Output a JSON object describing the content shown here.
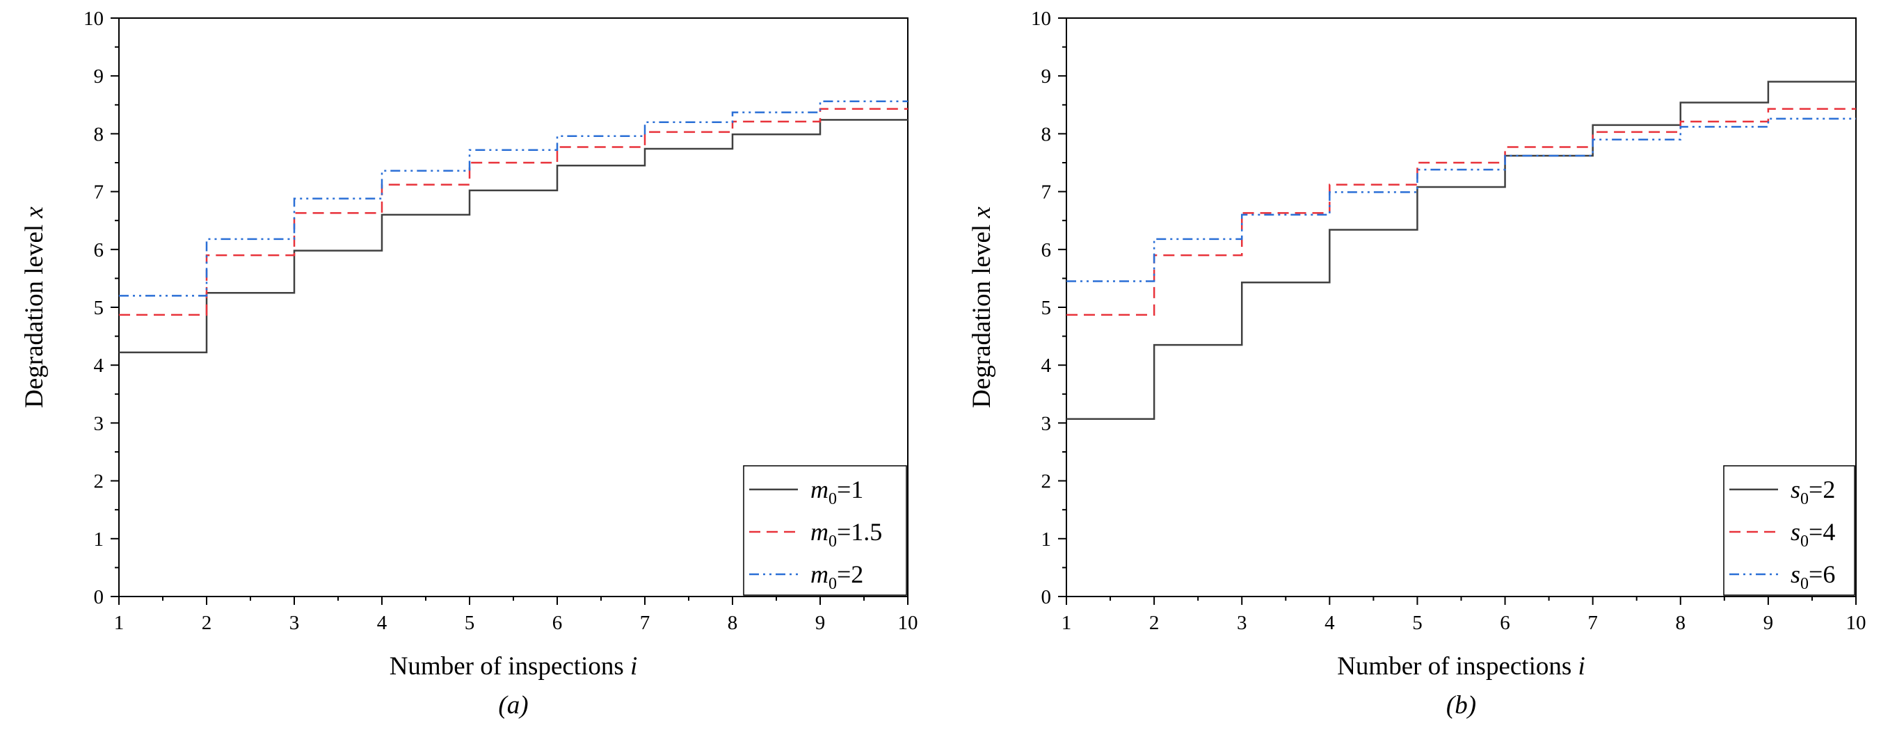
{
  "chart_data": [
    {
      "type": "line",
      "step": true,
      "panel_label": "(a)",
      "xlabel": "Number of inspections",
      "xlabel_var": "i",
      "ylabel": "Degradation level",
      "ylabel_var": "x",
      "xlim": [
        1,
        10
      ],
      "ylim": [
        0,
        10
      ],
      "xticks": [
        1,
        2,
        3,
        4,
        5,
        6,
        7,
        8,
        9,
        10
      ],
      "yticks": [
        0,
        1,
        2,
        3,
        4,
        5,
        6,
        7,
        8,
        9,
        10
      ],
      "x": [
        1,
        2,
        3,
        4,
        5,
        6,
        7,
        8,
        9,
        10
      ],
      "legend_position": "bottom-right",
      "series": [
        {
          "name": "m0=1",
          "symbol": "m",
          "subscript": "0",
          "value": "=1",
          "color": "#404040",
          "dash": "solid",
          "values": [
            4.22,
            5.25,
            5.98,
            6.6,
            7.02,
            7.45,
            7.74,
            7.99,
            8.24,
            8.24
          ]
        },
        {
          "name": "m0=1.5",
          "symbol": "m",
          "subscript": "0",
          "value": "=1.5",
          "color": "#e8323a",
          "dash": "dash",
          "values": [
            4.87,
            5.9,
            6.63,
            7.12,
            7.5,
            7.77,
            8.03,
            8.21,
            8.43,
            8.43
          ]
        },
        {
          "name": "m0=2",
          "symbol": "m",
          "subscript": "0",
          "value": "=2",
          "color": "#2a6fd6",
          "dash": "dashdotdot",
          "values": [
            5.2,
            6.18,
            6.88,
            7.36,
            7.72,
            7.96,
            8.2,
            8.37,
            8.56,
            8.56
          ]
        }
      ]
    },
    {
      "type": "line",
      "step": true,
      "panel_label": "(b)",
      "xlabel": "Number of inspections",
      "xlabel_var": "i",
      "ylabel": "Degradation level",
      "ylabel_var": "x",
      "xlim": [
        1,
        10
      ],
      "ylim": [
        0,
        10
      ],
      "xticks": [
        1,
        2,
        3,
        4,
        5,
        6,
        7,
        8,
        9,
        10
      ],
      "yticks": [
        0,
        1,
        2,
        3,
        4,
        5,
        6,
        7,
        8,
        9,
        10
      ],
      "x": [
        1,
        2,
        3,
        4,
        5,
        6,
        7,
        8,
        9,
        10
      ],
      "legend_position": "bottom-right",
      "series": [
        {
          "name": "s0=2",
          "symbol": "s",
          "subscript": "0",
          "value": "=2",
          "color": "#404040",
          "dash": "solid",
          "values": [
            3.07,
            4.35,
            5.43,
            6.34,
            7.08,
            7.62,
            8.15,
            8.54,
            8.9,
            8.9
          ]
        },
        {
          "name": "s0=4",
          "symbol": "s",
          "subscript": "0",
          "value": "=4",
          "color": "#e8323a",
          "dash": "dash",
          "values": [
            4.87,
            5.9,
            6.63,
            7.12,
            7.5,
            7.77,
            8.03,
            8.21,
            8.43,
            8.43
          ]
        },
        {
          "name": "s0=6",
          "symbol": "s",
          "subscript": "0",
          "value": "=6",
          "color": "#2a6fd6",
          "dash": "dashdotdot",
          "values": [
            5.45,
            6.18,
            6.6,
            6.99,
            7.38,
            7.62,
            7.9,
            8.12,
            8.26,
            8.26
          ]
        }
      ]
    }
  ]
}
